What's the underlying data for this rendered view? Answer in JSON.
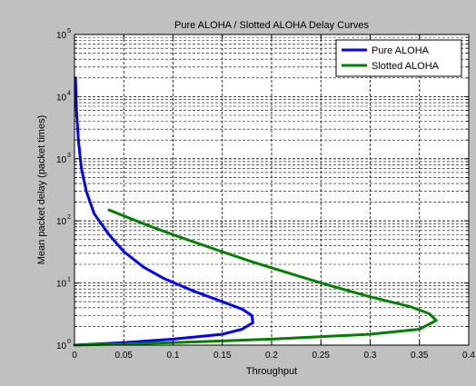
{
  "chart_data": {
    "type": "line",
    "title": "Pure ALOHA / Slotted ALOHA Delay Curves",
    "xlabel": "Throughput",
    "ylabel": "Mean packet delay (packet times)",
    "xlim": [
      0,
      0.4
    ],
    "ylim": [
      1,
      100000
    ],
    "yscale": "log",
    "grid": true,
    "legend_position": "top-right",
    "x_ticks": [
      "0",
      "0.05",
      "0.1",
      "0.15",
      "0.2",
      "0.25",
      "0.3",
      "0.35",
      "0.4"
    ],
    "y_tick_exponents": [
      "0",
      "1",
      "2",
      "3",
      "4",
      "5"
    ],
    "y_tick_base": "10",
    "series": [
      {
        "name": "Pure ALOHA",
        "color": "#0000ff",
        "points": [
          [
            0.0,
            1.0
          ],
          [
            0.05,
            1.1
          ],
          [
            0.1,
            1.25
          ],
          [
            0.15,
            1.5
          ],
          [
            0.17,
            1.8
          ],
          [
            0.181,
            2.3
          ],
          [
            0.18,
            3.0
          ],
          [
            0.17,
            3.8
          ],
          [
            0.15,
            5.0
          ],
          [
            0.12,
            7.5
          ],
          [
            0.09,
            12
          ],
          [
            0.07,
            18
          ],
          [
            0.05,
            32
          ],
          [
            0.035,
            60
          ],
          [
            0.02,
            130
          ],
          [
            0.012,
            300
          ],
          [
            0.007,
            700
          ],
          [
            0.004,
            2000
          ],
          [
            0.002,
            6000
          ],
          [
            0.001,
            20000
          ]
        ]
      },
      {
        "name": "Slotted ALOHA",
        "color": "#008000",
        "points": [
          [
            0.0,
            1.0
          ],
          [
            0.1,
            1.1
          ],
          [
            0.2,
            1.25
          ],
          [
            0.3,
            1.5
          ],
          [
            0.35,
            1.8
          ],
          [
            0.367,
            2.5
          ],
          [
            0.36,
            3.2
          ],
          [
            0.34,
            4.2
          ],
          [
            0.3,
            6.0
          ],
          [
            0.26,
            9.0
          ],
          [
            0.22,
            14
          ],
          [
            0.18,
            22
          ],
          [
            0.14,
            36
          ],
          [
            0.1,
            60
          ],
          [
            0.07,
            90
          ],
          [
            0.035,
            150
          ]
        ]
      }
    ]
  }
}
